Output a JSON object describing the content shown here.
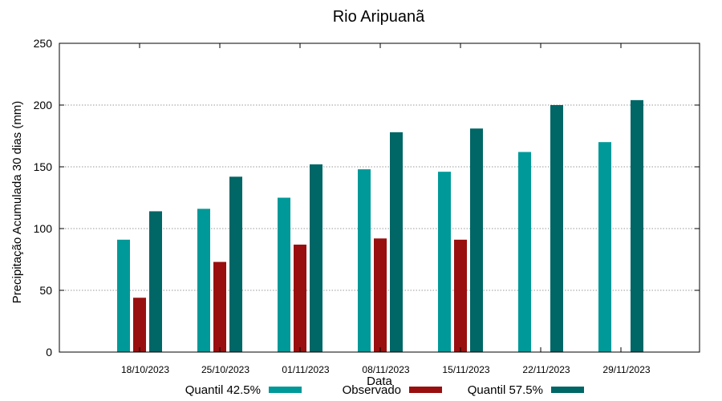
{
  "chart_data": {
    "type": "bar",
    "title": "Rio Aripuanã",
    "xlabel": "Data",
    "ylabel": "Precipitação Acumulada 30 dias (mm)",
    "ylim": [
      0,
      250
    ],
    "yticks": [
      0,
      50,
      100,
      150,
      200,
      250
    ],
    "grid": true,
    "legend_position": "bottom",
    "categories": [
      "18/10/2023",
      "25/10/2023",
      "01/11/2023",
      "08/11/2023",
      "15/11/2023",
      "22/11/2023",
      "29/11/2023"
    ],
    "series": [
      {
        "name": "Quantil 42.5%",
        "color": "#009999",
        "values": [
          91,
          116,
          125,
          148,
          146,
          162,
          170
        ]
      },
      {
        "name": "Observado",
        "color": "#990f0f",
        "values": [
          44,
          73,
          87,
          92,
          91,
          null,
          null
        ]
      },
      {
        "name": "Quantil 57.5%",
        "color": "#006666",
        "values": [
          114,
          142,
          152,
          178,
          181,
          200,
          204
        ]
      }
    ]
  }
}
